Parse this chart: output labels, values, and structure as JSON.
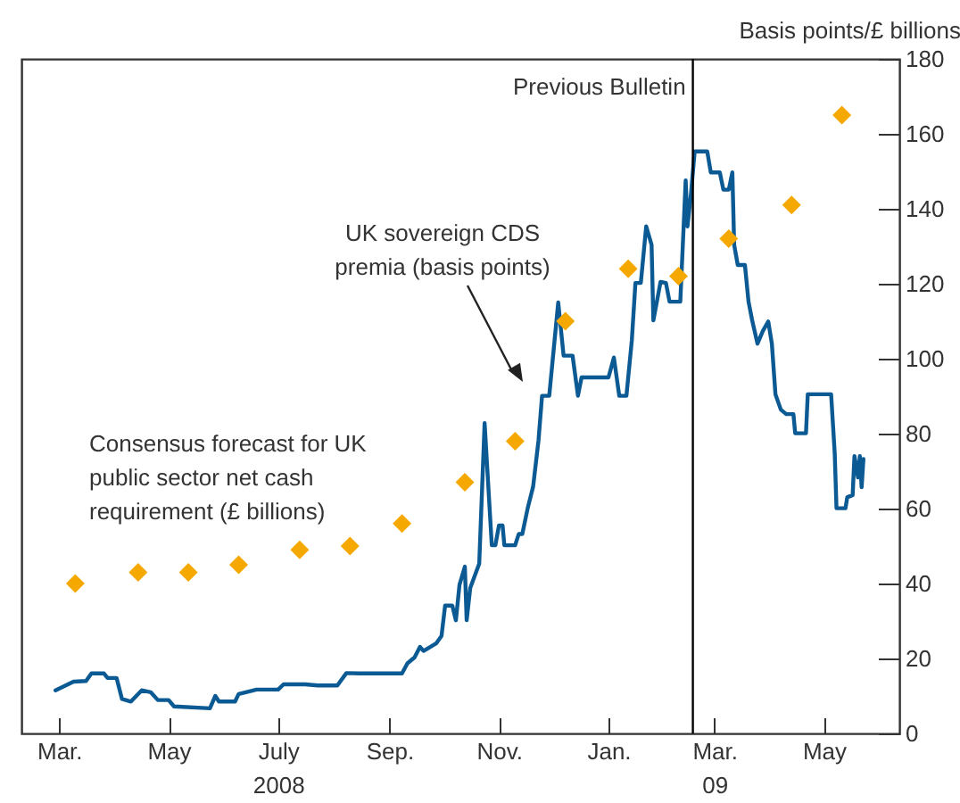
{
  "chart_data": {
    "type": "line",
    "ylabel": "Basis points/£ billions",
    "xlim": [
      "2008-02-09",
      "2009-06-12"
    ],
    "xticks": [
      {
        "value": "2008-03-01",
        "label": "Mar."
      },
      {
        "value": "2008-05-01",
        "label": "May"
      },
      {
        "value": "2008-07-01",
        "label": "July\n2008"
      },
      {
        "value": "2008-09-01",
        "label": "Sep."
      },
      {
        "value": "2008-11-01",
        "label": "Nov."
      },
      {
        "value": "2009-01-01",
        "label": "Jan."
      },
      {
        "value": "2009-03-01",
        "label": "Mar.\n09"
      },
      {
        "value": "2009-05-01",
        "label": "May"
      }
    ],
    "ylim": [
      0,
      180
    ],
    "yticks": [
      0,
      20,
      40,
      60,
      80,
      100,
      120,
      140,
      160,
      180
    ],
    "grid": false,
    "ref_lines": [
      {
        "axis": "x",
        "value": "2009-02-17",
        "label": "Previous Bulletin",
        "color": "#000000"
      }
    ],
    "series": [
      {
        "name": "UK sovereign CDS premia (basis points)",
        "marker": "none",
        "color": "#0b5a94",
        "x": [
          "2008-02-28",
          "2008-03-09",
          "2008-03-16",
          "2008-03-19",
          "2008-03-26",
          "2008-03-28",
          "2008-04-02",
          "2008-04-05",
          "2008-04-10",
          "2008-04-16",
          "2008-04-21",
          "2008-04-25",
          "2008-05-01",
          "2008-05-04",
          "2008-05-24",
          "2008-05-27",
          "2008-05-29",
          "2008-06-07",
          "2008-06-09",
          "2008-06-19",
          "2008-07-01",
          "2008-07-04",
          "2008-07-16",
          "2008-07-23",
          "2008-08-03",
          "2008-08-08",
          "2008-08-15",
          "2008-08-22",
          "2008-09-08",
          "2008-09-11",
          "2008-09-15",
          "2008-09-18",
          "2008-09-20",
          "2008-09-27",
          "2008-09-30",
          "2008-10-02",
          "2008-10-06",
          "2008-10-08",
          "2008-10-10",
          "2008-10-13",
          "2008-10-14",
          "2008-10-16",
          "2008-10-21",
          "2008-10-24",
          "2008-10-28",
          "2008-10-30",
          "2008-11-01",
          "2008-11-03",
          "2008-11-04",
          "2008-11-10",
          "2008-11-12",
          "2008-11-14",
          "2008-11-17",
          "2008-11-20",
          "2008-11-23",
          "2008-11-25",
          "2008-11-29",
          "2008-12-04",
          "2008-12-07",
          "2008-12-12",
          "2008-12-15",
          "2008-12-17",
          "2009-01-01",
          "2009-01-04",
          "2009-01-07",
          "2009-01-11",
          "2009-01-14",
          "2009-01-16",
          "2009-01-19",
          "2009-01-22",
          "2009-01-25",
          "2009-01-26",
          "2009-01-30",
          "2009-02-02",
          "2009-02-04",
          "2009-02-10",
          "2009-02-13",
          "2009-02-14",
          "2009-02-16",
          "2009-02-18",
          "2009-02-25",
          "2009-02-27",
          "2009-03-04",
          "2009-03-06",
          "2009-03-09",
          "2009-03-11",
          "2009-03-12",
          "2009-03-14",
          "2009-03-18",
          "2009-03-20",
          "2009-03-22",
          "2009-03-25",
          "2009-03-28",
          "2009-03-31",
          "2009-04-02",
          "2009-04-04",
          "2009-04-07",
          "2009-04-10",
          "2009-04-14",
          "2009-04-15",
          "2009-04-21",
          "2009-04-22",
          "2009-05-05",
          "2009-05-07",
          "2009-05-08",
          "2009-05-13",
          "2009-05-14",
          "2009-05-17",
          "2009-05-18",
          "2009-05-20",
          "2009-05-21",
          "2009-05-22",
          "2009-05-23"
        ],
        "values": [
          11.5,
          13.8,
          14,
          16,
          16,
          14.8,
          14.8,
          9.2,
          8.5,
          11.5,
          11,
          8.9,
          8.9,
          7.2,
          6.7,
          10,
          8.5,
          8.5,
          10.5,
          11.7,
          11.7,
          13.1,
          13.1,
          12.8,
          12.8,
          16.1,
          16,
          16,
          16,
          18.7,
          20.3,
          23.1,
          22,
          24,
          26,
          34.1,
          34.1,
          30.2,
          39.6,
          44.5,
          30.2,
          38.8,
          45.3,
          82.8,
          50.2,
          50.2,
          55.5,
          55.5,
          50.2,
          50.2,
          53.2,
          53.2,
          60.1,
          65.8,
          78.1,
          90.1,
          90.1,
          115,
          100.8,
          100.8,
          90.1,
          95,
          95,
          100.3,
          90.1,
          90.1,
          104.9,
          120.2,
          120.2,
          135.3,
          130.4,
          110.2,
          120.5,
          120.2,
          115.2,
          115.2,
          147.6,
          135.3,
          144.3,
          155.3,
          155.3,
          149.7,
          149.7,
          145.1,
          145.1,
          149.7,
          130.4,
          125,
          125,
          115.2,
          110.3,
          104,
          107.4,
          109.9,
          104,
          90.5,
          86.4,
          85.2,
          85.2,
          80.1,
          80.1,
          90.5,
          90.5,
          74.9,
          60.1,
          60.1,
          63,
          63.6,
          74,
          68.3,
          74,
          65.7,
          73.2
        ]
      },
      {
        "name": "Consensus forecast for UK public sector net cash requirement (£ billions)",
        "type": "scatter",
        "marker": "diamond",
        "color": "#f5a800",
        "x": [
          "2008-03-10",
          "2008-04-14",
          "2008-05-12",
          "2008-06-09",
          "2008-07-13",
          "2008-08-10",
          "2008-09-08",
          "2008-10-13",
          "2008-11-10",
          "2008-12-08",
          "2009-01-12",
          "2009-02-09",
          "2009-03-09",
          "2009-04-13",
          "2009-05-11"
        ],
        "values": [
          40,
          43,
          43,
          45,
          49,
          50,
          56,
          67,
          78,
          110,
          124,
          122,
          132,
          141,
          165
        ]
      }
    ]
  }
}
